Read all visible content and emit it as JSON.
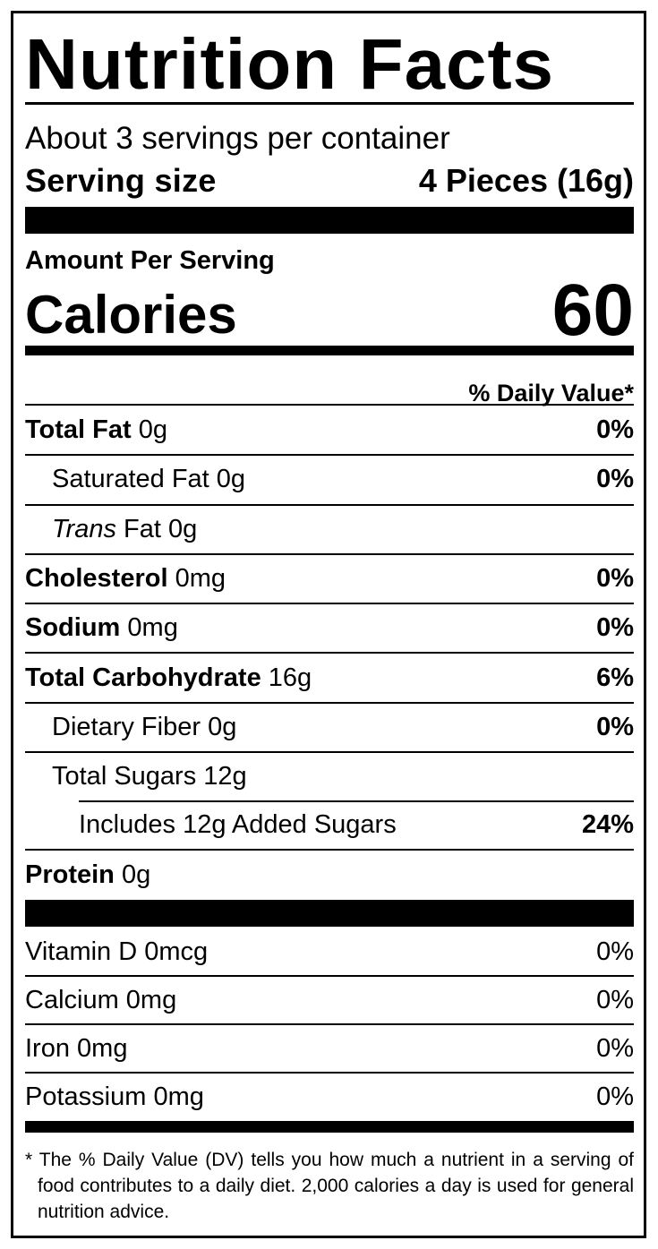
{
  "title": "Nutrition Facts",
  "servings_per_container": "About 3 servings per container",
  "serving_size": {
    "label": "Serving size",
    "value": "4 Pieces (16g)"
  },
  "amount_per_serving": "Amount Per Serving",
  "calories": {
    "label": "Calories",
    "value": "60"
  },
  "daily_value_header": "% Daily Value*",
  "nutrients": [
    {
      "name": "Total Fat",
      "amount": "0g",
      "dv": "0%"
    },
    {
      "name": "Saturated Fat",
      "amount": "0g",
      "dv": "0%"
    },
    {
      "name": "Trans",
      "suffix": "Fat",
      "amount": "0g",
      "dv": ""
    },
    {
      "name": "Cholesterol",
      "amount": "0mg",
      "dv": "0%"
    },
    {
      "name": "Sodium",
      "amount": "0mg",
      "dv": "0%"
    },
    {
      "name": "Total Carbohydrate",
      "amount": "16g",
      "dv": "6%"
    },
    {
      "name": "Dietary Fiber",
      "amount": "0g",
      "dv": "0%"
    },
    {
      "name": "Total Sugars",
      "amount": "12g",
      "dv": ""
    },
    {
      "name": "Includes 12g Added Sugars",
      "amount": "",
      "dv": "24%"
    },
    {
      "name": "Protein",
      "amount": "0g",
      "dv": ""
    }
  ],
  "vitamins": [
    {
      "name": "Vitamin D 0mcg",
      "dv": "0%"
    },
    {
      "name": "Calcium 0mg",
      "dv": "0%"
    },
    {
      "name": "Iron 0mg",
      "dv": "0%"
    },
    {
      "name": "Potassium 0mg",
      "dv": "0%"
    }
  ],
  "footnote": "* The % Daily Value (DV) tells you how much a nutrient in a serving of food contributes to a daily diet. 2,000 calories a day is used for general nutrition advice."
}
